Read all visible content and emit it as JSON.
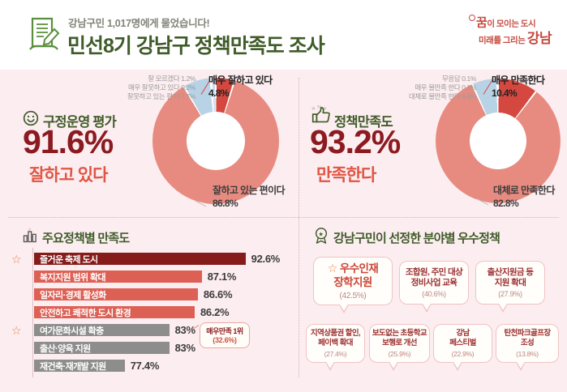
{
  "colors": {
    "bg": "#fcedf0",
    "header_bg": "#ffffff",
    "green": "#405c2a",
    "dark_red": "#8b1b20",
    "red": "#e05543",
    "salmon": "#e78b80",
    "slice_red": "#d5483f",
    "light_blue": "#b9d3e6",
    "gray_bar": "#8d8d8d",
    "logo_red": "#c54b40",
    "bar_dark": "#861c1a",
    "bar_salmon": "#dd6054"
  },
  "icons": {
    "star_glyph": "☆"
  },
  "header": {
    "subtitle": "강남구민 1,017명에게 물었습니다!",
    "title": "민선8기 강남구 정책만족도 조사",
    "logo": {
      "line1_big": "꿈",
      "line1_rest": "이 모이는 도시",
      "line2_rest": "미래를 그리는 ",
      "line2_big": "강남"
    }
  },
  "gov": {
    "title": "구정운영 평가",
    "big_value": "91.6%",
    "big_caption": "잘하고 있다",
    "labels": {
      "dontknow": "잘 모르겠다 1.2%",
      "very_bad": "매우 잘못하고 있다 0.2%",
      "somewhat_bad": "잘못하고 있는 편이다 7%",
      "very_good_line1": "매우 잘하고 있다",
      "very_good_line2": "4.8%",
      "somewhat_good_line1": "잘하고 있는 편이다",
      "somewhat_good_line2": "86.8%"
    }
  },
  "policy": {
    "title": "정책만족도",
    "big_value": "93.2%",
    "big_caption": "만족한다",
    "labels": {
      "no_answer": "무응답 0.1%",
      "very_dissat": "매우 불만족 한다 0.1%",
      "somewhat_dissat": "대체로 불만족 한다 6.6%",
      "very_sat_line1": "매우 만족한다",
      "very_sat_line2": "10.4%",
      "somewhat_sat_line1": "대체로 만족한다",
      "somewhat_sat_line2": "82.8%"
    }
  },
  "bars": {
    "title": "주요정책별 만족도",
    "callout_line1": "매우만족 1위",
    "callout_line2": "(32.6%)",
    "items": [
      {
        "label": "즐거운 축제 도시",
        "value": "92.6%"
      },
      {
        "label": "복지지원 범위 확대",
        "value": "87.1%"
      },
      {
        "label": "일자리·경제 활성화",
        "value": "86.6%"
      },
      {
        "label": "안전하고 쾌적한 도시 환경",
        "value": "86.2%"
      },
      {
        "label": "여가문화시설 확충",
        "value": "83%"
      },
      {
        "label": "출산·양육 지원",
        "value": "83%"
      },
      {
        "label": "재건축·재개발 지원",
        "value": "77.4%"
      }
    ]
  },
  "best": {
    "title": "강남구민이 선정한 분야별 우수정책",
    "cards": [
      {
        "line1": "우수인재",
        "line2": "장학지원",
        "pct": "(42.5%)"
      },
      {
        "line1": "조합원, 주민 대상",
        "line2": "정비사업 교육",
        "pct": "(40.6%)"
      },
      {
        "line1": "출산지원금 등",
        "line2": "지원 확대",
        "pct": "(27.9%)"
      },
      {
        "line1": "지역상품권 할인,",
        "line2": "페이백 확대",
        "pct": "(27.4%)"
      },
      {
        "line1": "보도없는 초등학교",
        "line2": "보행로 개선",
        "pct": "(25.9%)"
      },
      {
        "line1": "강남",
        "line2": "페스티벌",
        "pct": "(22.9%)"
      },
      {
        "line1": "탄천파크골프장",
        "line2": "조성",
        "pct": "(13.8%)"
      }
    ]
  },
  "chart_data": [
    {
      "type": "pie",
      "donut": true,
      "title": "구정운영 평가",
      "labels": [
        "매우 잘하고 있다",
        "잘하고 있는 편이다",
        "잘못하고 있는 편이다",
        "매우 잘못하고 있다",
        "잘 모르겠다"
      ],
      "values": [
        4.8,
        86.8,
        7,
        0.2,
        1.2
      ],
      "colors": [
        "#d5483f",
        "#e78b80",
        "#b9d3e6",
        "#9fc1dc",
        "#ccdeed"
      ],
      "summary": {
        "positive_total": 91.6,
        "caption": "잘하고 있다"
      }
    },
    {
      "type": "pie",
      "donut": true,
      "title": "정책만족도",
      "labels": [
        "매우 만족한다",
        "대체로 만족한다",
        "대체로 불만족 한다",
        "매우 불만족 한다",
        "무응답"
      ],
      "values": [
        10.4,
        82.8,
        6.6,
        0.1,
        0.1
      ],
      "colors": [
        "#d5483f",
        "#e78b80",
        "#b9d3e6",
        "#9fc1dc",
        "#ccdeed"
      ],
      "summary": {
        "positive_total": 93.2,
        "caption": "만족한다"
      }
    },
    {
      "type": "bar",
      "title": "주요정책별 만족도",
      "unit": "%",
      "categories": [
        "즐거운 축제 도시",
        "복지지원 범위 확대",
        "일자리·경제 활성화",
        "안전하고 쾌적한 도시 환경",
        "여가문화시설 확충",
        "출산·양육 지원",
        "재건축·재개발 지원"
      ],
      "values": [
        92.6,
        87.1,
        86.6,
        86.2,
        83,
        83,
        77.4
      ],
      "annotation": "여가문화시설 확충 = 매우만족 1위 (32.6%)",
      "starred": [
        "즐거운 축제 도시",
        "여가문화시설 확충"
      ]
    },
    {
      "type": "bar",
      "title": "강남구민이 선정한 분야별 우수정책",
      "unit": "%",
      "categories": [
        "우수인재 장학지원",
        "조합원, 주민 대상 정비사업 교육",
        "출산지원금 등 지원 확대",
        "지역상품권 할인, 페이백 확대",
        "보도없는 초등학교 보행로 개선",
        "강남 페스티벌",
        "탄천파크골프장 조성"
      ],
      "values": [
        42.5,
        40.6,
        27.9,
        27.4,
        25.9,
        22.9,
        13.8
      ],
      "starred": [
        "우수인재 장학지원"
      ]
    }
  ]
}
